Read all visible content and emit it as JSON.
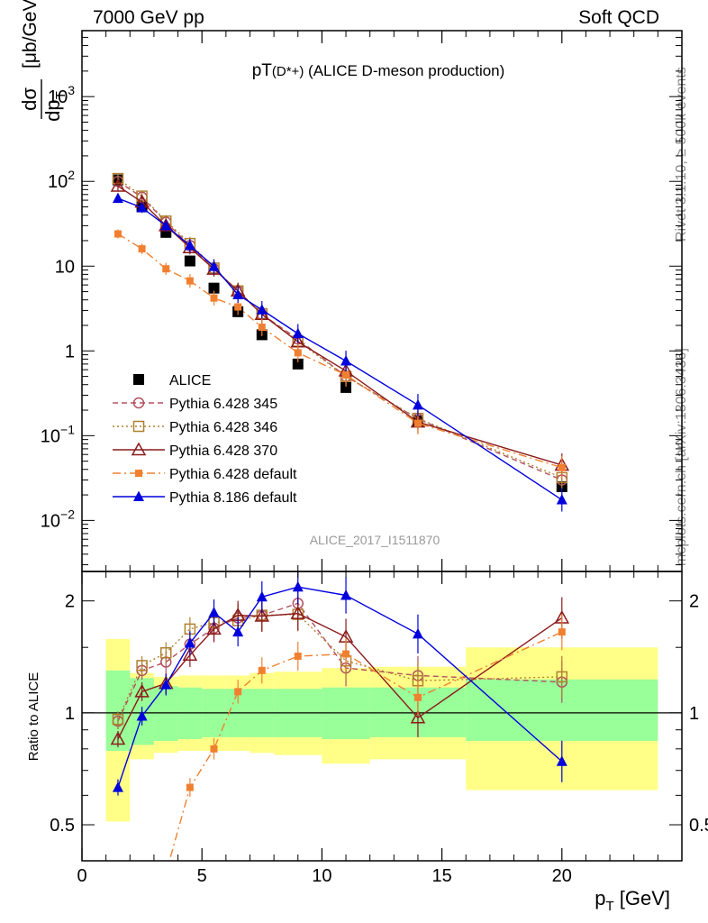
{
  "header": {
    "left": "7000 GeV pp",
    "right": "Soft QCD",
    "side_top": "Rivet 3.1.10, ≥ 500k events",
    "side_bottom": "mcplots.cern.ch [arXiv:1306.3436]"
  },
  "chart_data": [
    {
      "type": "scatter",
      "title": "pT(D*+) (ALICE D-meson production)",
      "title_main": "pT",
      "title_sub": "(D*+)",
      "title_tail": " (ALICE D-meson production)",
      "ylabel_num": "dσ",
      "ylabel_den": "dp",
      "ylabel_den_sub": "T",
      "ylabel_unit": "[μb/GeV]",
      "watermark": "ALICE_2017_I1511870",
      "xlim": [
        0,
        25
      ],
      "ylim": [
        0.0025,
        6000
      ],
      "yscale": "log",
      "xticks": [
        0,
        5,
        10,
        15,
        20
      ],
      "yticks": [
        {
          "v": 0.01,
          "base": "10",
          "exp": "−2"
        },
        {
          "v": 0.1,
          "base": "10",
          "exp": "−1"
        },
        {
          "v": 1,
          "base": "1",
          "exp": ""
        },
        {
          "v": 10,
          "base": "10",
          "exp": ""
        },
        {
          "v": 100,
          "base": "10",
          "exp": "2"
        },
        {
          "v": 1000,
          "base": "10",
          "exp": "3"
        }
      ],
      "series": [
        {
          "name": "ALICE",
          "color": "#000000",
          "marker": "square-filled",
          "dash": "none",
          "x": [
            1.5,
            2.5,
            3.5,
            4.5,
            5.5,
            6.5,
            7.5,
            9,
            11,
            14,
            20
          ],
          "y": [
            104,
            50,
            25,
            11.5,
            5.5,
            2.9,
            1.55,
            0.7,
            0.37,
            0.15,
            0.025
          ]
        },
        {
          "name": "Pythia 6.428 345",
          "color": "#b25060",
          "marker": "circle-open",
          "dash": "6,4",
          "x": [
            1.5,
            2.5,
            3.5,
            4.5,
            5.5,
            6.5,
            7.5,
            9,
            11,
            14,
            20
          ],
          "y": [
            100,
            65,
            33,
            17.5,
            9.3,
            5.1,
            2.7,
            1.38,
            0.5,
            0.158,
            0.03
          ]
        },
        {
          "name": "Pythia 6.428 346",
          "color": "#b08030",
          "marker": "square-open",
          "dash": "2,3",
          "x": [
            1.5,
            2.5,
            3.5,
            4.5,
            5.5,
            6.5,
            7.5,
            9,
            11,
            14,
            20
          ],
          "y": [
            108,
            67,
            34,
            18.5,
            9.5,
            5.1,
            2.75,
            1.3,
            0.5,
            0.16,
            0.032
          ]
        },
        {
          "name": "Pythia 6.428 370",
          "color": "#8b1a1a",
          "marker": "triangle-open",
          "dash": "none",
          "x": [
            1.5,
            2.5,
            3.5,
            4.5,
            5.5,
            6.5,
            7.5,
            9,
            11,
            14,
            20
          ],
          "y": [
            88,
            57,
            30,
            16.5,
            9.2,
            5.1,
            2.7,
            1.28,
            0.58,
            0.145,
            0.045
          ]
        },
        {
          "name": "Pythia 6.428 default",
          "color": "#f08030",
          "marker": "square-filled-small",
          "dash": "9,4,2,4",
          "x": [
            1.5,
            2.5,
            3.5,
            4.5,
            5.5,
            6.5,
            7.5,
            9,
            11,
            14,
            20
          ],
          "y": [
            24,
            16,
            9.3,
            6.7,
            4.2,
            3.3,
            1.9,
            0.95,
            0.52,
            0.14,
            0.042
          ]
        },
        {
          "name": "Pythia 8.186 default",
          "color": "#0000dd",
          "marker": "triangle-filled",
          "dash": "none",
          "x": [
            1.5,
            2.5,
            3.5,
            4.5,
            5.5,
            6.5,
            7.5,
            9,
            11,
            14,
            20
          ],
          "y": [
            63,
            49,
            30,
            17.5,
            9.9,
            4.6,
            3.05,
            1.6,
            0.76,
            0.23,
            0.0175
          ]
        }
      ],
      "legend": [
        "ALICE",
        "Pythia 6.428 345",
        "Pythia 6.428 346",
        "Pythia 6.428 370",
        "Pythia 6.428 default",
        "Pythia 8.186 default"
      ]
    },
    {
      "type": "scatter",
      "title": "",
      "xlabel_main": "p",
      "xlabel_sub": "T",
      "xlabel_unit": " [GeV]",
      "ylabel": "Ratio to ALICE",
      "xlim": [
        0,
        25
      ],
      "ylim": [
        0.4,
        2.4
      ],
      "yscale": "log",
      "xticks": [
        0,
        5,
        10,
        15,
        20
      ],
      "yticks": [
        0.5,
        1,
        2
      ],
      "uncertainty_bands": [
        {
          "x0": 1,
          "x1": 2,
          "inner": [
            0.79,
            1.3
          ],
          "outer": [
            0.51,
            1.58
          ]
        },
        {
          "x0": 2,
          "x1": 3,
          "inner": [
            0.82,
            1.24
          ],
          "outer": [
            0.75,
            1.28
          ]
        },
        {
          "x0": 3,
          "x1": 4,
          "inner": [
            0.84,
            1.18
          ],
          "outer": [
            0.78,
            1.25
          ]
        },
        {
          "x0": 4,
          "x1": 5,
          "inner": [
            0.85,
            1.17
          ],
          "outer": [
            0.79,
            1.26
          ]
        },
        {
          "x0": 5,
          "x1": 6,
          "inner": [
            0.86,
            1.16
          ],
          "outer": [
            0.79,
            1.26
          ]
        },
        {
          "x0": 6,
          "x1": 7,
          "inner": [
            0.86,
            1.16
          ],
          "outer": [
            0.79,
            1.26
          ]
        },
        {
          "x0": 7,
          "x1": 8,
          "inner": [
            0.86,
            1.16
          ],
          "outer": [
            0.78,
            1.28
          ]
        },
        {
          "x0": 8,
          "x1": 10,
          "inner": [
            0.86,
            1.16
          ],
          "outer": [
            0.77,
            1.29
          ]
        },
        {
          "x0": 10,
          "x1": 12,
          "inner": [
            0.85,
            1.17
          ],
          "outer": [
            0.73,
            1.32
          ]
        },
        {
          "x0": 12,
          "x1": 16,
          "inner": [
            0.86,
            1.17
          ],
          "outer": [
            0.75,
            1.33
          ]
        },
        {
          "x0": 16,
          "x1": 24,
          "inner": [
            0.84,
            1.23
          ],
          "outer": [
            0.62,
            1.5
          ]
        }
      ],
      "series": [
        {
          "name": "Pythia 6.428 345",
          "color": "#b25060",
          "marker": "circle-open",
          "dash": "6,4",
          "x": [
            1.5,
            2.5,
            3.5,
            4.5,
            5.5,
            6.5,
            7.5,
            9,
            11,
            14,
            20
          ],
          "y": [
            0.95,
            1.3,
            1.37,
            1.53,
            1.69,
            1.8,
            1.83,
            1.97,
            1.32,
            1.26,
            1.21
          ]
        },
        {
          "name": "Pythia 6.428 346",
          "color": "#b08030",
          "marker": "square-open",
          "dash": "2,3",
          "x": [
            1.5,
            2.5,
            3.5,
            4.5,
            5.5,
            6.5,
            7.5,
            9,
            11,
            14,
            20
          ],
          "y": [
            0.96,
            1.34,
            1.45,
            1.68,
            1.75,
            1.77,
            1.83,
            1.84,
            1.38,
            1.22,
            1.25
          ]
        },
        {
          "name": "Pythia 6.428 370",
          "color": "#8b1a1a",
          "marker": "triangle-open",
          "dash": "none",
          "x": [
            1.5,
            2.5,
            3.5,
            4.5,
            5.5,
            6.5,
            7.5,
            9,
            11,
            14,
            20
          ],
          "y": [
            0.85,
            1.14,
            1.2,
            1.43,
            1.68,
            1.83,
            1.82,
            1.85,
            1.6,
            0.97,
            1.8
          ]
        },
        {
          "name": "Pythia 6.428 default",
          "color": "#f08030",
          "marker": "square-filled-small",
          "dash": "9,4,2,4",
          "x": [
            3.5,
            4.5,
            5.5,
            6.5,
            7.5,
            9,
            11,
            14,
            20
          ],
          "y": [
            0.37,
            0.63,
            0.8,
            1.14,
            1.3,
            1.42,
            1.44,
            1.1,
            1.65
          ]
        },
        {
          "name": "Pythia 8.186 default",
          "color": "#0000dd",
          "marker": "triangle-filled",
          "dash": "none",
          "x": [
            1.5,
            2.5,
            3.5,
            4.5,
            5.5,
            6.5,
            7.5,
            9,
            11,
            14,
            20
          ],
          "y": [
            0.63,
            0.98,
            1.19,
            1.54,
            1.86,
            1.65,
            2.05,
            2.18,
            2.07,
            1.63,
            0.74
          ]
        }
      ]
    }
  ]
}
